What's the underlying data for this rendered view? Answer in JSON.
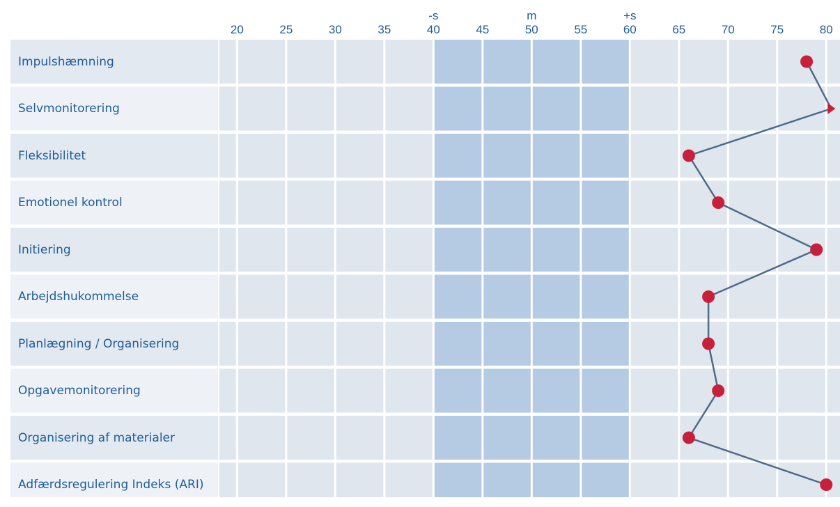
{
  "chart_data": {
    "type": "profile",
    "categories": [
      "Impulshæmning",
      "Selvmonitorering",
      "Fleksibilitet",
      "Emotionel kontrol",
      "Initiering",
      "Arbejdshukommelse",
      "Planlægning / Organisering",
      "Opgavemonitorering",
      "Organisering af materialer",
      "Adfærdsregulering Indeks (ARI)"
    ],
    "values": [
      78,
      80.5,
      66,
      69,
      79,
      68,
      68,
      69,
      66,
      80
    ],
    "color": "#c8203a",
    "line_color": "#4f6b8a",
    "xlim": [
      18.2,
      81.4
    ],
    "xticks": [
      20,
      25,
      30,
      35,
      40,
      45,
      50,
      55,
      60,
      65,
      70,
      75,
      80
    ],
    "band": [
      40,
      60
    ],
    "band_labels": [
      {
        "value": 40,
        "label": "-s"
      },
      {
        "value": 50,
        "label": "m"
      },
      {
        "value": 60,
        "label": "+s"
      }
    ],
    "grid": true
  }
}
